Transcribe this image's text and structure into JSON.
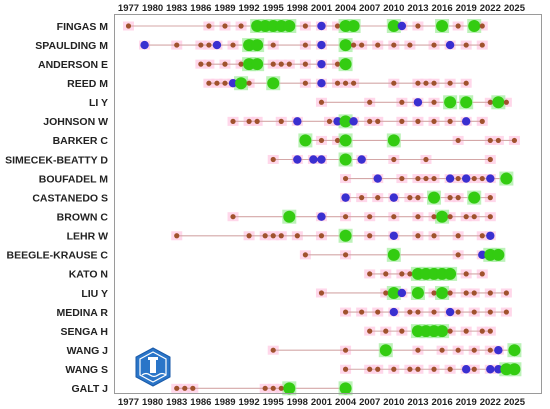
{
  "chart_data": {
    "type": "scatter",
    "title": "",
    "xlabel": "",
    "ylabel": "",
    "xlim": [
      1975,
      2027
    ],
    "x_ticks": [
      1977,
      1980,
      1983,
      1986,
      1989,
      1992,
      1995,
      1998,
      2001,
      2004,
      2007,
      2010,
      2013,
      2016,
      2019,
      2022,
      2025
    ],
    "authors": [
      "FINGAS M",
      "SPAULDING M",
      "ANDERSON E",
      "REED M",
      "LI Y",
      "JOHNSON W",
      "BARKER C",
      "SIMECEK-BEATTY D",
      "BOUFADEL M",
      "CASTANEDO S",
      "BROWN C",
      "LEHR W",
      "BEEGLE-KRAUSE C",
      "KATO N",
      "LIU Y",
      "MEDINA R",
      "SENGA H",
      "WANG J",
      "WANG S",
      "GALT J"
    ],
    "colors": {
      "small": "#a0522d",
      "medium": "#3a2fd0",
      "large": "#33cc11",
      "highlight": "#ffd0e6",
      "line": "#d4a7a7",
      "large_glow": "#a5eea0"
    },
    "legend_note": "dot color/size indicates publication count (small=brown, medium=blue, large=green)",
    "series": [
      {
        "author": "FINGAS M",
        "span": [
          1977,
          2021
        ],
        "points": [
          [
            1977,
            "s"
          ],
          [
            1987,
            "s"
          ],
          [
            1989,
            "s"
          ],
          [
            1991,
            "s"
          ],
          [
            1993,
            "l"
          ],
          [
            1994,
            "l"
          ],
          [
            1995,
            "l"
          ],
          [
            1996,
            "l"
          ],
          [
            1997,
            "l"
          ],
          [
            1999,
            "s"
          ],
          [
            2001,
            "m"
          ],
          [
            2003,
            "s"
          ],
          [
            2004,
            "l"
          ],
          [
            2005,
            "l"
          ],
          [
            2010,
            "l"
          ],
          [
            2011,
            "m"
          ],
          [
            2013,
            "s"
          ],
          [
            2016,
            "l"
          ],
          [
            2018,
            "s"
          ],
          [
            2020,
            "l"
          ],
          [
            2021,
            "s"
          ]
        ]
      },
      {
        "author": "SPAULDING M",
        "span": [
          1979,
          2021
        ],
        "points": [
          [
            1979,
            "m"
          ],
          [
            1983,
            "s"
          ],
          [
            1986,
            "s"
          ],
          [
            1987,
            "s"
          ],
          [
            1988,
            "m"
          ],
          [
            1990,
            "s"
          ],
          [
            1992,
            "l"
          ],
          [
            1993,
            "l"
          ],
          [
            1995,
            "s"
          ],
          [
            1999,
            "s"
          ],
          [
            2001,
            "m"
          ],
          [
            2004,
            "l"
          ],
          [
            2005,
            "s"
          ],
          [
            2006,
            "s"
          ],
          [
            2008,
            "s"
          ],
          [
            2010,
            "s"
          ],
          [
            2012,
            "s"
          ],
          [
            2015,
            "s"
          ],
          [
            2017,
            "m"
          ],
          [
            2019,
            "s"
          ],
          [
            2021,
            "s"
          ]
        ]
      },
      {
        "author": "ANDERSON E",
        "span": [
          1986,
          2004
        ],
        "points": [
          [
            1986,
            "s"
          ],
          [
            1987,
            "s"
          ],
          [
            1989,
            "s"
          ],
          [
            1991,
            "s"
          ],
          [
            1992,
            "l"
          ],
          [
            1993,
            "l"
          ],
          [
            1995,
            "s"
          ],
          [
            1996,
            "s"
          ],
          [
            1997,
            "s"
          ],
          [
            1999,
            "s"
          ],
          [
            2001,
            "m"
          ],
          [
            2003,
            "s"
          ],
          [
            2004,
            "l"
          ]
        ]
      },
      {
        "author": "REED M",
        "span": [
          1987,
          2019
        ],
        "points": [
          [
            1987,
            "s"
          ],
          [
            1988,
            "s"
          ],
          [
            1989,
            "s"
          ],
          [
            1990,
            "m"
          ],
          [
            1991,
            "l"
          ],
          [
            1992,
            "s"
          ],
          [
            1995,
            "l"
          ],
          [
            1999,
            "s"
          ],
          [
            2001,
            "m"
          ],
          [
            2003,
            "s"
          ],
          [
            2004,
            "s"
          ],
          [
            2005,
            "s"
          ],
          [
            2010,
            "s"
          ],
          [
            2013,
            "s"
          ],
          [
            2014,
            "s"
          ],
          [
            2015,
            "s"
          ],
          [
            2017,
            "s"
          ],
          [
            2019,
            "s"
          ]
        ]
      },
      {
        "author": "LI Y",
        "span": [
          2001,
          2024
        ],
        "points": [
          [
            2001,
            "s"
          ],
          [
            2007,
            "s"
          ],
          [
            2011,
            "s"
          ],
          [
            2013,
            "m"
          ],
          [
            2015,
            "s"
          ],
          [
            2017,
            "l"
          ],
          [
            2019,
            "l"
          ],
          [
            2022,
            "s"
          ],
          [
            2023,
            "l"
          ],
          [
            2024,
            "s"
          ]
        ]
      },
      {
        "author": "JOHNSON W",
        "span": [
          1990,
          2021
        ],
        "points": [
          [
            1990,
            "s"
          ],
          [
            1992,
            "s"
          ],
          [
            1993,
            "s"
          ],
          [
            1996,
            "s"
          ],
          [
            1998,
            "m"
          ],
          [
            2002,
            "s"
          ],
          [
            2003,
            "m"
          ],
          [
            2004,
            "l"
          ],
          [
            2005,
            "m"
          ],
          [
            2007,
            "s"
          ],
          [
            2008,
            "s"
          ],
          [
            2011,
            "s"
          ],
          [
            2013,
            "s"
          ],
          [
            2015,
            "s"
          ],
          [
            2017,
            "s"
          ],
          [
            2019,
            "m"
          ],
          [
            2021,
            "s"
          ]
        ]
      },
      {
        "author": "BARKER C",
        "span": [
          1999,
          2025
        ],
        "points": [
          [
            1999,
            "l"
          ],
          [
            2001,
            "s"
          ],
          [
            2003,
            "s"
          ],
          [
            2004,
            "l"
          ],
          [
            2010,
            "l"
          ],
          [
            2018,
            "s"
          ],
          [
            2022,
            "s"
          ],
          [
            2023,
            "s"
          ],
          [
            2025,
            "s"
          ]
        ]
      },
      {
        "author": "SIMECEK-BEATTY D",
        "span": [
          1995,
          2022
        ],
        "points": [
          [
            1995,
            "s"
          ],
          [
            1998,
            "m"
          ],
          [
            2000,
            "m"
          ],
          [
            2001,
            "m"
          ],
          [
            2004,
            "l"
          ],
          [
            2006,
            "m"
          ],
          [
            2010,
            "s"
          ],
          [
            2014,
            "s"
          ],
          [
            2022,
            "s"
          ]
        ]
      },
      {
        "author": "BOUFADEL M",
        "span": [
          2004,
          2024
        ],
        "points": [
          [
            2004,
            "s"
          ],
          [
            2008,
            "m"
          ],
          [
            2011,
            "s"
          ],
          [
            2013,
            "s"
          ],
          [
            2014,
            "s"
          ],
          [
            2015,
            "s"
          ],
          [
            2017,
            "m"
          ],
          [
            2018,
            "s"
          ],
          [
            2019,
            "m"
          ],
          [
            2020,
            "s"
          ],
          [
            2021,
            "s"
          ],
          [
            2022,
            "m"
          ],
          [
            2024,
            "l"
          ]
        ]
      },
      {
        "author": "CASTANEDO S",
        "span": [
          2004,
          2022
        ],
        "points": [
          [
            2004,
            "m"
          ],
          [
            2006,
            "s"
          ],
          [
            2008,
            "s"
          ],
          [
            2010,
            "m"
          ],
          [
            2012,
            "s"
          ],
          [
            2013,
            "s"
          ],
          [
            2015,
            "l"
          ],
          [
            2017,
            "s"
          ],
          [
            2018,
            "s"
          ],
          [
            2020,
            "l"
          ],
          [
            2022,
            "s"
          ]
        ]
      },
      {
        "author": "BROWN C",
        "span": [
          1990,
          2022
        ],
        "points": [
          [
            1990,
            "s"
          ],
          [
            1997,
            "l"
          ],
          [
            2001,
            "m"
          ],
          [
            2004,
            "s"
          ],
          [
            2007,
            "s"
          ],
          [
            2010,
            "s"
          ],
          [
            2013,
            "s"
          ],
          [
            2015,
            "s"
          ],
          [
            2016,
            "l"
          ],
          [
            2017,
            "s"
          ],
          [
            2019,
            "s"
          ],
          [
            2020,
            "s"
          ],
          [
            2022,
            "s"
          ]
        ]
      },
      {
        "author": "LEHR W",
        "span": [
          1983,
          2022
        ],
        "points": [
          [
            1983,
            "s"
          ],
          [
            1992,
            "s"
          ],
          [
            1994,
            "s"
          ],
          [
            1995,
            "s"
          ],
          [
            1996,
            "s"
          ],
          [
            1998,
            "s"
          ],
          [
            2001,
            "s"
          ],
          [
            2004,
            "l"
          ],
          [
            2007,
            "s"
          ],
          [
            2010,
            "m"
          ],
          [
            2013,
            "s"
          ],
          [
            2015,
            "s"
          ],
          [
            2018,
            "s"
          ],
          [
            2021,
            "s"
          ],
          [
            2022,
            "m"
          ]
        ]
      },
      {
        "author": "BEEGLE-KRAUSE C",
        "span": [
          1999,
          2023
        ],
        "points": [
          [
            1999,
            "s"
          ],
          [
            2004,
            "s"
          ],
          [
            2010,
            "l"
          ],
          [
            2018,
            "s"
          ],
          [
            2021,
            "m"
          ],
          [
            2022,
            "l"
          ],
          [
            2023,
            "l"
          ]
        ]
      },
      {
        "author": "KATO N",
        "span": [
          2007,
          2021
        ],
        "points": [
          [
            2007,
            "s"
          ],
          [
            2009,
            "s"
          ],
          [
            2011,
            "s"
          ],
          [
            2012,
            "s"
          ],
          [
            2013,
            "l"
          ],
          [
            2014,
            "l"
          ],
          [
            2015,
            "l"
          ],
          [
            2016,
            "l"
          ],
          [
            2017,
            "l"
          ],
          [
            2019,
            "s"
          ],
          [
            2021,
            "s"
          ]
        ]
      },
      {
        "author": "LIU Y",
        "span": [
          2001,
          2024
        ],
        "points": [
          [
            2001,
            "s"
          ],
          [
            2009,
            "s"
          ],
          [
            2010,
            "l"
          ],
          [
            2011,
            "m"
          ],
          [
            2013,
            "l"
          ],
          [
            2015,
            "s"
          ],
          [
            2016,
            "l"
          ],
          [
            2017,
            "s"
          ],
          [
            2019,
            "s"
          ],
          [
            2020,
            "s"
          ],
          [
            2022,
            "s"
          ],
          [
            2024,
            "s"
          ]
        ]
      },
      {
        "author": "MEDINA R",
        "span": [
          2004,
          2024
        ],
        "points": [
          [
            2004,
            "s"
          ],
          [
            2006,
            "s"
          ],
          [
            2008,
            "s"
          ],
          [
            2010,
            "m"
          ],
          [
            2012,
            "s"
          ],
          [
            2013,
            "s"
          ],
          [
            2015,
            "s"
          ],
          [
            2017,
            "m"
          ],
          [
            2018,
            "s"
          ],
          [
            2020,
            "s"
          ],
          [
            2022,
            "s"
          ],
          [
            2024,
            "s"
          ]
        ]
      },
      {
        "author": "SENGA H",
        "span": [
          2007,
          2022
        ],
        "points": [
          [
            2007,
            "s"
          ],
          [
            2009,
            "s"
          ],
          [
            2011,
            "s"
          ],
          [
            2013,
            "l"
          ],
          [
            2014,
            "l"
          ],
          [
            2015,
            "l"
          ],
          [
            2016,
            "l"
          ],
          [
            2017,
            "s"
          ],
          [
            2019,
            "s"
          ],
          [
            2021,
            "s"
          ],
          [
            2022,
            "s"
          ]
        ]
      },
      {
        "author": "WANG J",
        "span": [
          1995,
          2025
        ],
        "points": [
          [
            1995,
            "s"
          ],
          [
            2004,
            "s"
          ],
          [
            2009,
            "l"
          ],
          [
            2013,
            "s"
          ],
          [
            2016,
            "s"
          ],
          [
            2018,
            "s"
          ],
          [
            2020,
            "s"
          ],
          [
            2022,
            "s"
          ],
          [
            2023,
            "m"
          ],
          [
            2025,
            "l"
          ]
        ]
      },
      {
        "author": "WANG S",
        "span": [
          2004,
          2025
        ],
        "points": [
          [
            2004,
            "s"
          ],
          [
            2007,
            "s"
          ],
          [
            2008,
            "s"
          ],
          [
            2010,
            "s"
          ],
          [
            2012,
            "s"
          ],
          [
            2013,
            "s"
          ],
          [
            2015,
            "s"
          ],
          [
            2017,
            "s"
          ],
          [
            2019,
            "m"
          ],
          [
            2020,
            "s"
          ],
          [
            2022,
            "m"
          ],
          [
            2023,
            "m"
          ],
          [
            2024,
            "l"
          ],
          [
            2025,
            "l"
          ]
        ]
      },
      {
        "author": "GALT J",
        "span": [
          1983,
          2004
        ],
        "points": [
          [
            1983,
            "s"
          ],
          [
            1984,
            "s"
          ],
          [
            1985,
            "s"
          ],
          [
            1994,
            "s"
          ],
          [
            1995,
            "s"
          ],
          [
            1996,
            "s"
          ],
          [
            1997,
            "l"
          ],
          [
            2004,
            "l"
          ]
        ]
      }
    ]
  }
}
